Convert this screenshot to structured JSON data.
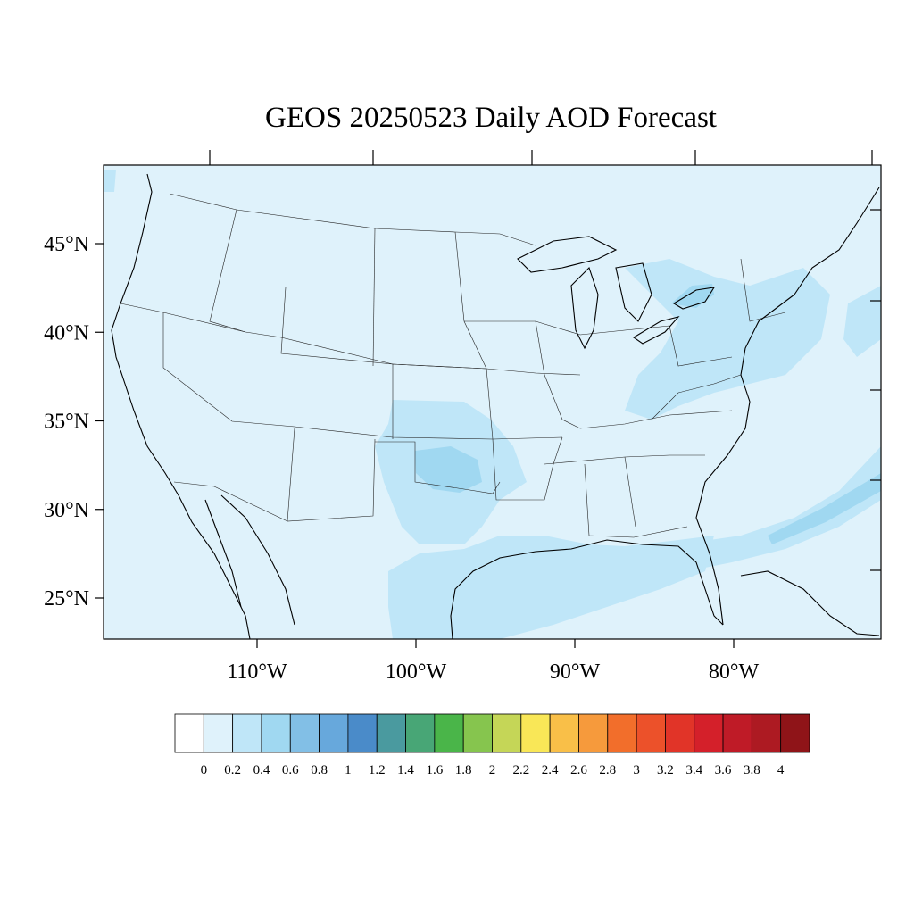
{
  "title": "GEOS 20250523 Daily AOD Forecast",
  "map": {
    "lat_ticks": [
      {
        "value": 45,
        "label": "45°N"
      },
      {
        "value": 40,
        "label": "40°N"
      },
      {
        "value": 35,
        "label": "35°N"
      },
      {
        "value": 30,
        "label": "30°N"
      },
      {
        "value": 25,
        "label": "25°N"
      }
    ],
    "lon_ticks": [
      {
        "value": -110,
        "label": "110°W"
      },
      {
        "value": -100,
        "label": "100°W"
      },
      {
        "value": -90,
        "label": "90°W"
      },
      {
        "value": -80,
        "label": "80°W"
      }
    ],
    "background_color": "#dff2fb",
    "plume_colors": {
      "level_0_4": "#bfe6f8",
      "level_0_6": "#a0d8f1"
    }
  },
  "colorbar": {
    "colors": [
      "#ffffff",
      "#dff2fb",
      "#bfe6f8",
      "#a0d8f1",
      "#82bfe6",
      "#67a8dc",
      "#4a8bc9",
      "#4a9a9f",
      "#48a676",
      "#4ab549",
      "#86c54e",
      "#c5d657",
      "#f9e757",
      "#f9bf48",
      "#f69a3c",
      "#f26e2b",
      "#ec512a",
      "#e13428",
      "#d4202a",
      "#bf1b27",
      "#ad1a22",
      "#8f1418"
    ],
    "labels": [
      "0",
      "0.2",
      "0.4",
      "0.6",
      "0.8",
      "1",
      "1.2",
      "1.4",
      "1.6",
      "1.8",
      "2",
      "2.2",
      "2.4",
      "2.6",
      "2.8",
      "3",
      "3.2",
      "3.4",
      "3.6",
      "3.8",
      "4"
    ]
  }
}
